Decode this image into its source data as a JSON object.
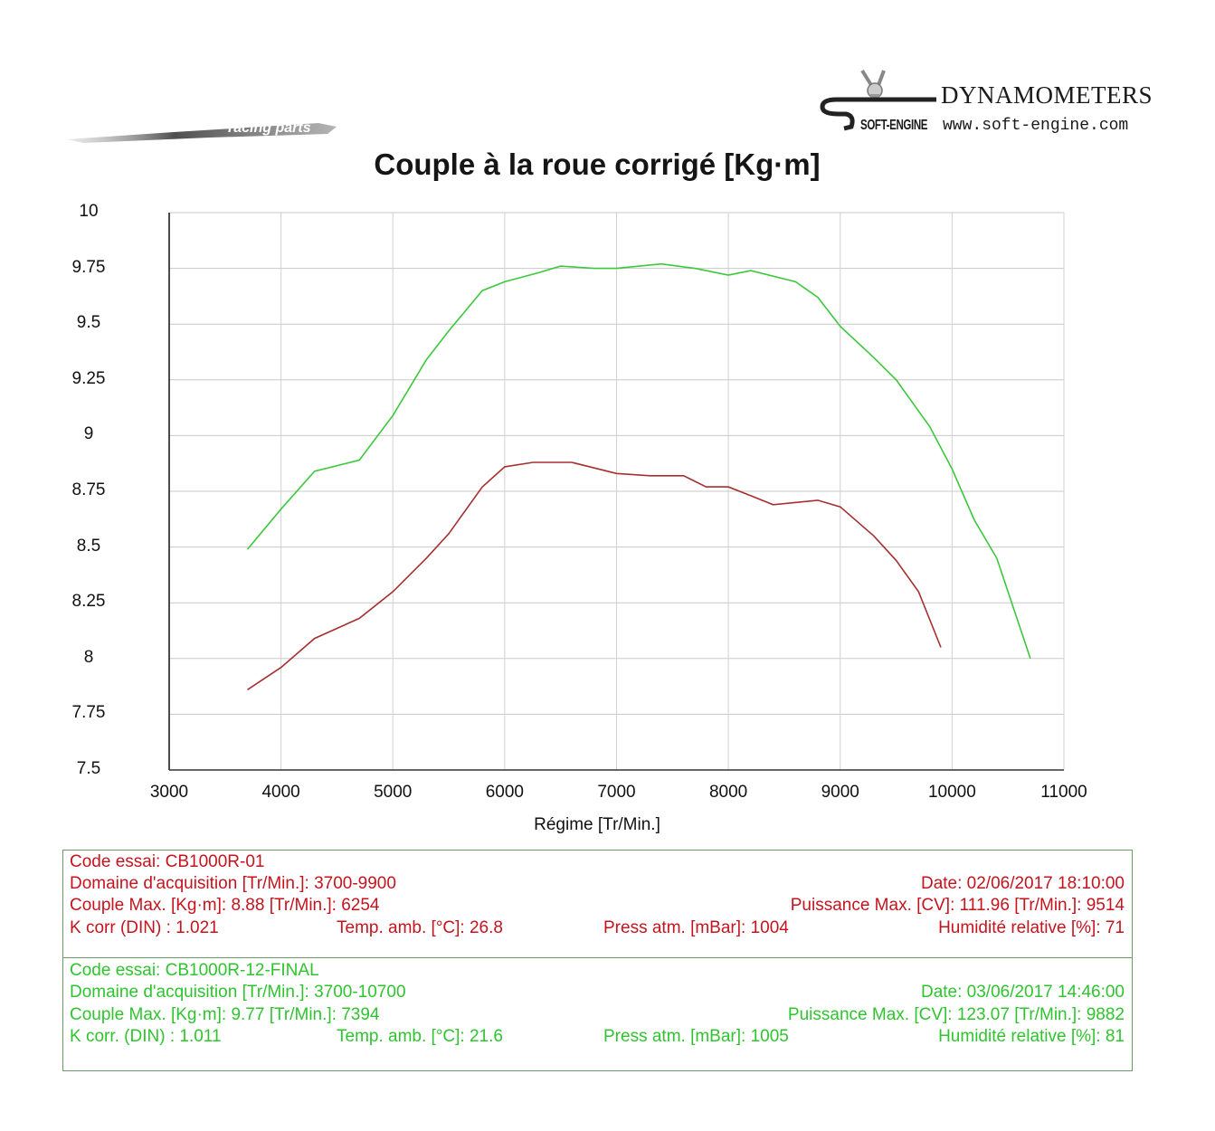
{
  "header": {
    "left_logo_text": "racing parts",
    "brand_name": "DYNAMOMETERS",
    "brand_sub": "SOFT-ENGINE",
    "brand_url": "www.soft-engine.com"
  },
  "chart": {
    "title": "Couple à la roue corrigé [Kg·m]",
    "xlabel": "Régime [Tr/Min.]",
    "yticks": [
      "10",
      "9.75",
      "9.5",
      "9.25",
      "9",
      "8.75",
      "8.5",
      "8.25",
      "8",
      "7.75",
      "7.5"
    ],
    "xticks": [
      "3000",
      "4000",
      "5000",
      "6000",
      "7000",
      "8000",
      "9000",
      "10000",
      "11000"
    ]
  },
  "chart_data": {
    "type": "line",
    "title": "Couple à la roue corrigé [Kg·m]",
    "xlabel": "Régime [Tr/Min.]",
    "ylabel": "",
    "xlim": [
      3000,
      11000
    ],
    "ylim": [
      7.5,
      10
    ],
    "grid": true,
    "legend": "none (series identified by colored info boxes below chart)",
    "series": [
      {
        "name": "CB1000R-12-FINAL",
        "color": "#3cc83c",
        "x": [
          3700,
          4000,
          4300,
          4700,
          5000,
          5300,
          5500,
          5800,
          6000,
          6300,
          6500,
          6800,
          7000,
          7400,
          7700,
          8000,
          8200,
          8600,
          8800,
          9000,
          9300,
          9500,
          9800,
          10000,
          10200,
          10400,
          10700
        ],
        "y": [
          8.49,
          8.67,
          8.84,
          8.89,
          9.09,
          9.34,
          9.47,
          9.65,
          9.69,
          9.73,
          9.76,
          9.75,
          9.75,
          9.77,
          9.75,
          9.72,
          9.74,
          9.69,
          9.62,
          9.49,
          9.35,
          9.25,
          9.04,
          8.85,
          8.62,
          8.45,
          8.0
        ]
      },
      {
        "name": "CB1000R-01",
        "color": "#a53030",
        "x": [
          3700,
          4000,
          4300,
          4700,
          5000,
          5300,
          5500,
          5800,
          6000,
          6254,
          6600,
          7000,
          7300,
          7600,
          7800,
          8000,
          8200,
          8400,
          8800,
          9000,
          9300,
          9500,
          9700,
          9900
        ],
        "y": [
          7.86,
          7.96,
          8.09,
          8.18,
          8.3,
          8.45,
          8.56,
          8.77,
          8.86,
          8.88,
          8.88,
          8.83,
          8.82,
          8.82,
          8.77,
          8.77,
          8.73,
          8.69,
          8.71,
          8.68,
          8.55,
          8.44,
          8.3,
          8.05
        ]
      }
    ]
  },
  "runs": [
    {
      "color": "#c4141e",
      "code": "Code essai: CB1000R-01",
      "domain": "Domaine d'acquisition [Tr/Min.]: 3700-9900",
      "couple_max": "Couple Max. [Kg·m]: 8.88   [Tr/Min.]: 6254",
      "kcorr": "K corr  (DIN) : 1.021",
      "temp": "Temp. amb. [°C]: 26.8",
      "date": "Date: 02/06/2017   18:10:00",
      "puissance": "Puissance Max. [CV]: 111.96   [Tr/Min.]: 9514",
      "press": "Press atm. [mBar]: 1004",
      "humid": "Humidité relative [%]: 71"
    },
    {
      "color": "#2fc42f",
      "code": "Code essai: CB1000R-12-FINAL",
      "domain": "Domaine d'acquisition [Tr/Min.]: 3700-10700",
      "couple_max": "Couple Max. [Kg·m]: 9.77   [Tr/Min.]: 7394",
      "kcorr": "K corr. (DIN) : 1.011",
      "temp": "Temp. amb. [°C]: 21.6",
      "date": "Date: 03/06/2017   14:46:00",
      "puissance": "Puissance Max. [CV]: 123.07   [Tr/Min.]: 9882",
      "press": "Press atm. [mBar]: 1005",
      "humid": "Humidité relative [%]: 81"
    }
  ]
}
